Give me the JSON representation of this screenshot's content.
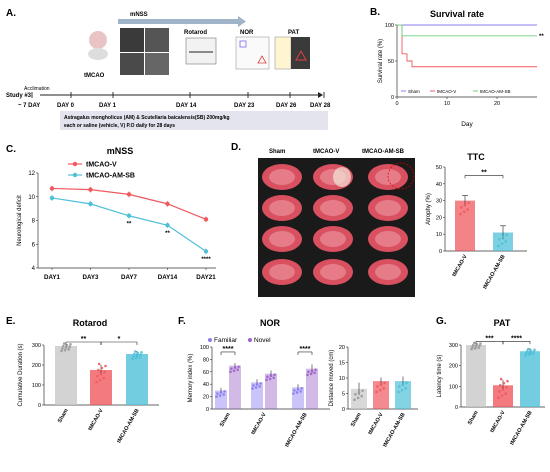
{
  "colors": {
    "sham": "#8a7cf0",
    "tmcaov": "#f0595f",
    "amsb": "#4fc0d8",
    "nor_familiar": "#8a7cf0",
    "nor_novel": "#9b64c8",
    "gray": "#c8c8c8"
  },
  "panelA": {
    "letter": "A.",
    "study": "Study #3",
    "acclimation": "Acclimation",
    "tmcao": "tMCAO",
    "mnss": "mNSS",
    "rotarod": "Rotarod",
    "nor": "NOR",
    "pat": "PAT",
    "days": [
      "~ 7 DAY",
      "DAY 0",
      "DAY 1",
      "DAY 14",
      "DAY 23",
      "DAY 26",
      "DAY 28"
    ],
    "note1": "Astragalus mongholicus (AM) & Scutellaria baicalensis(SB) 200mg/kg",
    "note2": "each or saline (vehicle, V) P.O daily for 28 days"
  },
  "panelD": {
    "letter": "D.",
    "groups": [
      "Sham",
      "tMCAO-V",
      "tMCAO-AM-SB"
    ]
  },
  "chart_data": [
    {
      "id": "B",
      "letter": "B.",
      "type": "line",
      "title": "Survival rate",
      "xlabel": "Day",
      "ylabel": "Survival rate (%)",
      "xlim": [
        0,
        28
      ],
      "ylim": [
        0,
        100
      ],
      "xticks": [
        0,
        10,
        20
      ],
      "yticks": [
        0,
        50,
        100
      ],
      "legend": [
        "Sham",
        "tMCAO-V",
        "tMCAO-AM-SB"
      ],
      "series": [
        {
          "name": "Sham",
          "steps": [
            [
              0,
              100
            ],
            [
              28,
              100
            ]
          ]
        },
        {
          "name": "tMCAO-V",
          "steps": [
            [
              0,
              100
            ],
            [
              1,
              60
            ],
            [
              2,
              50
            ],
            [
              3,
              42
            ],
            [
              28,
              42
            ]
          ]
        },
        {
          "name": "tMCAO-AM-SB",
          "steps": [
            [
              0,
              100
            ],
            [
              1,
              85
            ],
            [
              28,
              85
            ]
          ]
        }
      ],
      "annotations": [
        "**"
      ]
    },
    {
      "id": "C",
      "letter": "C.",
      "type": "line",
      "title": "mNSS",
      "ylabel": "Neurological deficit",
      "categories": [
        "DAY1",
        "DAY3",
        "DAY7",
        "DAY14",
        "DAY21"
      ],
      "ylim": [
        4,
        12
      ],
      "yticks": [
        4,
        6,
        8,
        10,
        12
      ],
      "series": [
        {
          "name": "tMCAO-V",
          "values": [
            10.7,
            10.6,
            10.2,
            9.4,
            8.1
          ]
        },
        {
          "name": "tMCAO-AM-SB",
          "values": [
            9.9,
            9.4,
            8.4,
            7.6,
            5.4
          ]
        }
      ],
      "annotations": [
        "**",
        "**",
        "****"
      ]
    },
    {
      "id": "TTC",
      "type": "bar",
      "title": "TTC",
      "ylabel": "Atrophy (%)",
      "categories": [
        "tMCAO-V",
        "tMCAO-AM-SB"
      ],
      "values": [
        30,
        11
      ],
      "errors": [
        3,
        4
      ],
      "ylim": [
        0,
        50
      ],
      "yticks": [
        0,
        10,
        20,
        30,
        40,
        50
      ],
      "annotations": [
        "**"
      ]
    },
    {
      "id": "E",
      "letter": "E.",
      "type": "bar",
      "title": "Rotarod",
      "ylabel": "Cumulative Duration (s)",
      "categories": [
        "Sham",
        "tMCAO-V",
        "tMCAO-AM-SB"
      ],
      "values": [
        295,
        175,
        255
      ],
      "errors": [
        5,
        25,
        15
      ],
      "ylim": [
        0,
        300
      ],
      "yticks": [
        0,
        100,
        200,
        300
      ],
      "annotations": [
        "**",
        "*"
      ]
    },
    {
      "id": "F1",
      "letter": "F.",
      "type": "bar",
      "title": "NOR",
      "ylabel": "Memory index (%)",
      "categories": [
        "Sham",
        "tMCAO-V",
        "tMCAO-AM-SB"
      ],
      "legend": [
        "Familiar",
        "Novel"
      ],
      "series": [
        {
          "name": "Familiar",
          "values": [
            30,
            43,
            35
          ],
          "errors": [
            4,
            5,
            5
          ]
        },
        {
          "name": "Novel",
          "values": [
            70,
            57,
            65
          ],
          "errors": [
            4,
            5,
            7
          ]
        }
      ],
      "ylim": [
        0,
        100
      ],
      "yticks": [
        0,
        20,
        40,
        60,
        80,
        100
      ],
      "annotations": [
        "****",
        "****"
      ]
    },
    {
      "id": "F2",
      "type": "bar",
      "ylabel": "Distance moved (cm)",
      "categories": [
        "Sham",
        "tMCAO-V",
        "tMCAO-AM-SB"
      ],
      "values": [
        6.5,
        9,
        9
      ],
      "errors": [
        2,
        1.2,
        1.5
      ],
      "ylim": [
        0,
        20
      ],
      "yticks": [
        0,
        5,
        10,
        15,
        20
      ]
    },
    {
      "id": "G",
      "letter": "G.",
      "type": "bar",
      "title": "PAT",
      "ylabel": "Latency time (s)",
      "categories": [
        "Sham",
        "tMCAO-V",
        "tMCAO-AM-SB"
      ],
      "values": [
        300,
        105,
        270
      ],
      "errors": [
        5,
        25,
        15
      ],
      "ylim": [
        0,
        300
      ],
      "yticks": [
        0,
        100,
        200,
        300
      ],
      "annotations": [
        "***",
        "****"
      ]
    }
  ]
}
